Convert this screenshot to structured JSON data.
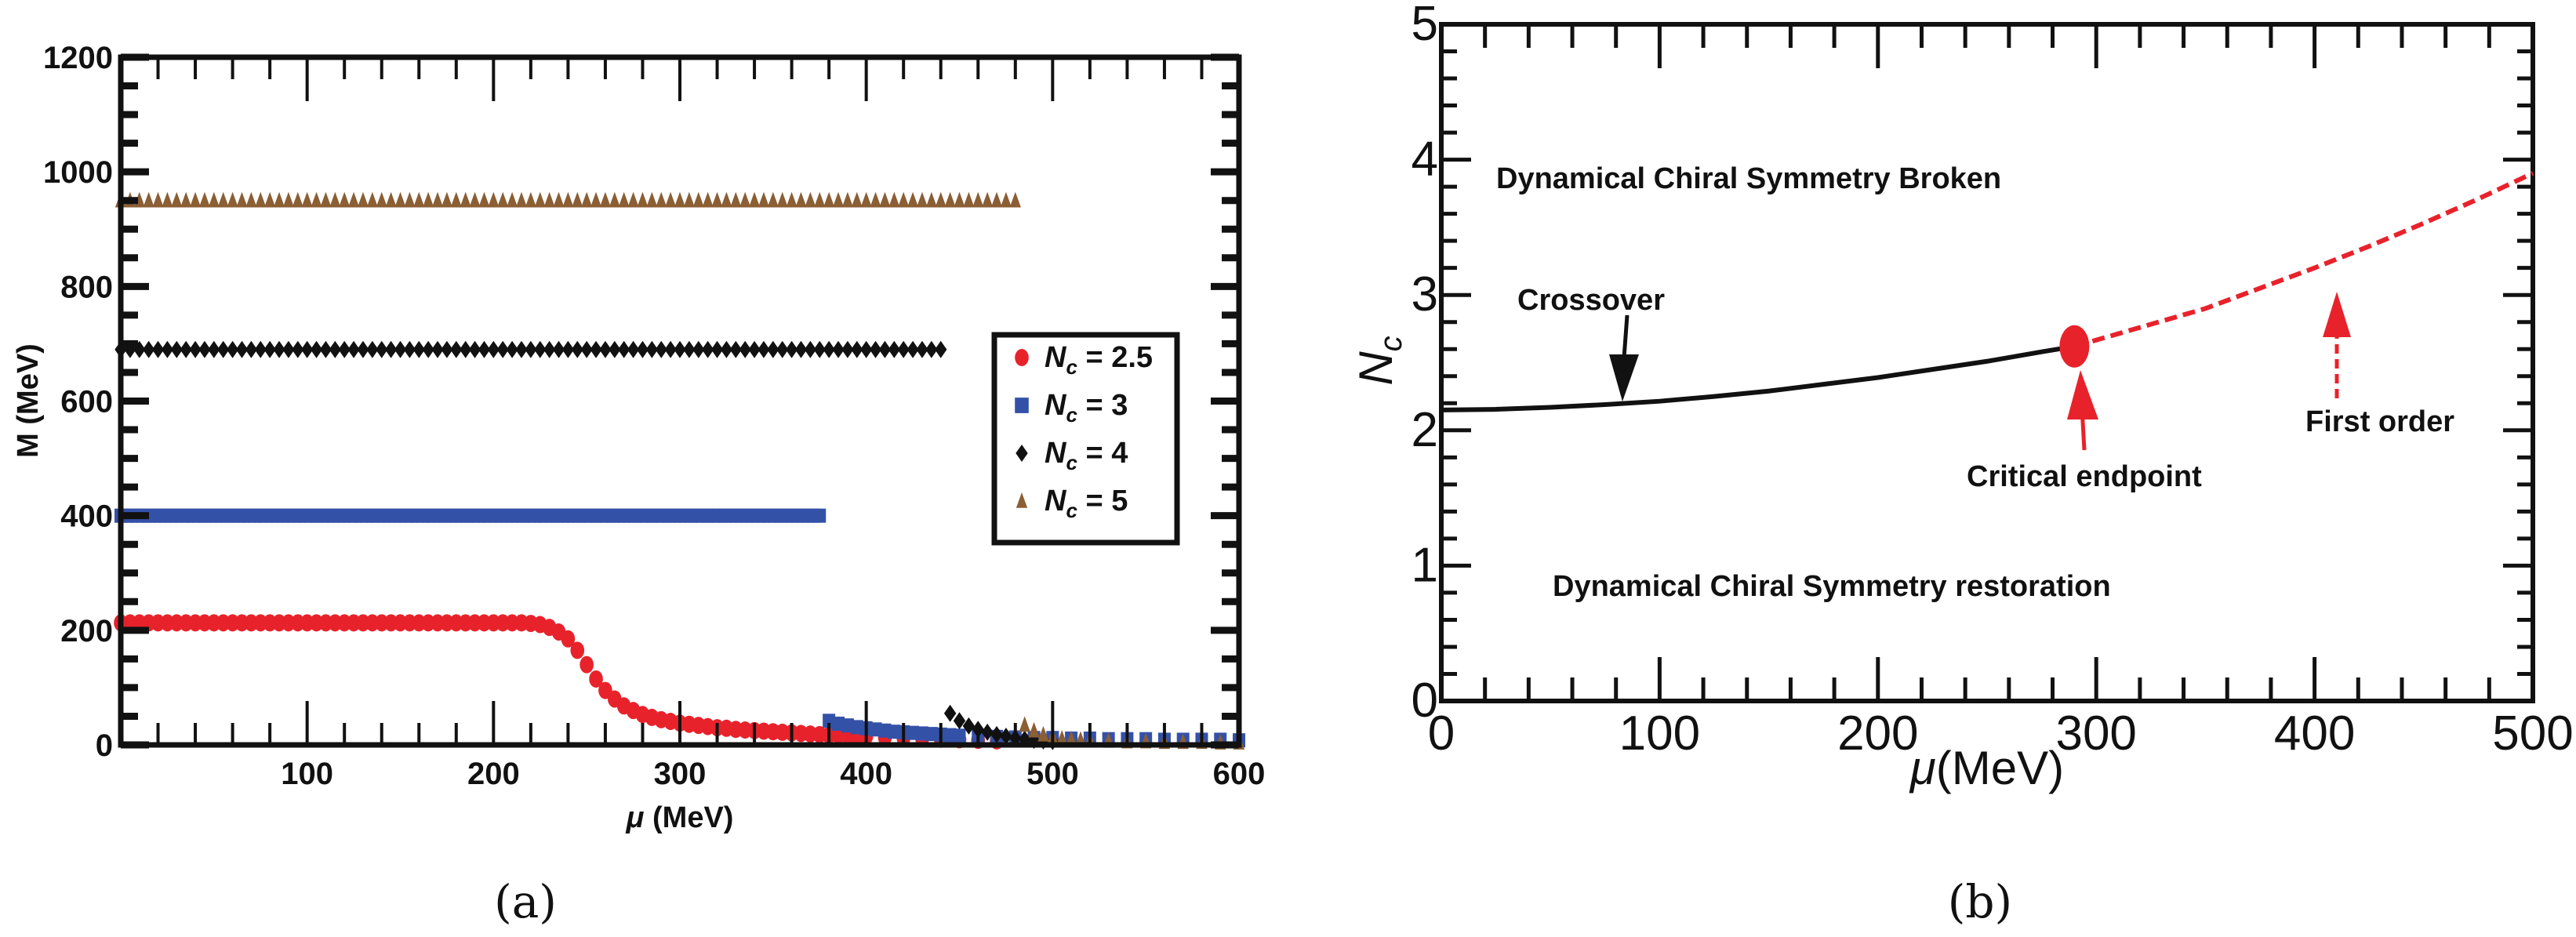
{
  "chart_data": [
    {
      "type": "scatter",
      "caption": "(a)",
      "xlabel_sym": "μ",
      "xlabel_unit": "(MeV)",
      "ylabel": "M (MeV)",
      "xlim": [
        0,
        600
      ],
      "ylim": [
        0,
        1200
      ],
      "xticks": [
        100,
        200,
        300,
        400,
        500,
        600
      ],
      "yticks": [
        0,
        200,
        400,
        600,
        800,
        1000,
        1200
      ],
      "legend_position": "right",
      "series": [
        {
          "name": "Nc = 2.5",
          "legend_sym": "N",
          "legend_sub": "c",
          "legend_val": "= 2.5",
          "marker": "circle",
          "color": "#e8222b",
          "upper_branch": {
            "x_from": 0,
            "x_to": 215,
            "step": 5,
            "M": 213
          },
          "lower_branch": {
            "x": [
              220,
              225,
              230,
              235,
              240,
              245,
              250,
              255,
              260,
              265,
              270,
              275,
              280,
              285,
              290,
              295,
              300,
              305,
              310,
              315,
              320,
              325,
              330,
              335,
              340,
              345,
              350,
              355,
              360,
              365,
              370,
              375,
              380,
              385,
              390,
              395,
              400,
              410,
              420,
              430,
              440,
              450,
              460,
              470
            ],
            "M": [
              212,
              210,
              205,
              197,
              185,
              165,
              140,
              115,
              95,
              80,
              68,
              60,
              53,
              48,
              44,
              41,
              38,
              36,
              34,
              32,
              30,
              29,
              27,
              26,
              25,
              24,
              23,
              22,
              21,
              20,
              19,
              18,
              17,
              17,
              16,
              15,
              15,
              13,
              12,
              11,
              10,
              9,
              8,
              7
            ]
          }
        },
        {
          "name": "Nc = 3",
          "legend_sym": "N",
          "legend_sub": "c",
          "legend_val": "= 3",
          "marker": "square",
          "color": "#3451a8",
          "upper_branch": {
            "x_from": 0,
            "x_to": 377,
            "step": 3,
            "M": 400
          },
          "lower_branch": {
            "x": [
              380,
              385,
              390,
              395,
              400,
              405,
              410,
              415,
              420,
              425,
              430,
              435,
              440,
              445,
              450,
              460,
              470,
              480,
              490,
              500,
              510,
              520,
              530,
              540,
              550,
              560,
              570,
              580,
              590,
              600
            ],
            "M": [
              42,
              37,
              34,
              31,
              29,
              27,
              25,
              23,
              22,
              21,
              20,
              19,
              18,
              17,
              16,
              15,
              14,
              13,
              12,
              12,
              11,
              11,
              10,
              10,
              10,
              9,
              9,
              9,
              9,
              8
            ]
          }
        },
        {
          "name": "Nc = 4",
          "legend_sym": "N",
          "legend_sub": "c",
          "legend_val": "= 4",
          "marker": "diamond",
          "color": "#111111",
          "upper_branch": {
            "x_from": 0,
            "x_to": 440,
            "step": 5,
            "M": 690
          },
          "lower_branch": {
            "x": [
              445,
              450,
              455,
              460,
              465,
              470,
              475,
              480,
              485,
              490,
              495,
              500
            ],
            "M": [
              55,
              42,
              33,
              27,
              22,
              18,
              15,
              12,
              10,
              8,
              7,
              6
            ]
          }
        },
        {
          "name": "Nc = 5",
          "legend_sym": "N",
          "legend_sub": "c",
          "legend_val": "= 5",
          "marker": "triangle",
          "color": "#8b5e34",
          "upper_branch": {
            "x_from": 0,
            "x_to": 480,
            "step": 5,
            "M": 950
          },
          "lower_branch": {
            "x": [
              485,
              490,
              495,
              500,
              505,
              510,
              515,
              520,
              530,
              540,
              550,
              560,
              570,
              580,
              590,
              600
            ],
            "M": [
              35,
              25,
              18,
              14,
              11,
              10,
              9,
              8,
              7,
              6,
              6,
              5,
              5,
              5,
              4,
              4
            ]
          }
        }
      ]
    },
    {
      "type": "line",
      "caption": "(b)",
      "xlabel_sym": "μ",
      "xlabel_unit": "(MeV)",
      "ylabel_sym": "N",
      "ylabel_sub": "c",
      "xlim": [
        0,
        500
      ],
      "ylim": [
        0,
        5
      ],
      "xticks": [
        0,
        100,
        200,
        300,
        400,
        500
      ],
      "yticks": [
        0,
        1,
        2,
        3,
        4,
        5
      ],
      "series": [
        {
          "name": "Crossover",
          "style": "solid",
          "color": "#111111",
          "x": [
            0,
            25,
            50,
            75,
            100,
            125,
            150,
            175,
            200,
            225,
            250,
            275,
            290
          ],
          "y": [
            2.15,
            2.155,
            2.17,
            2.19,
            2.215,
            2.25,
            2.29,
            2.34,
            2.39,
            2.45,
            2.51,
            2.58,
            2.62
          ]
        },
        {
          "name": "First order",
          "style": "dashed",
          "color": "#e8222b",
          "x": [
            290,
            320,
            350,
            375,
            400,
            425,
            450,
            475,
            500
          ],
          "y": [
            2.62,
            2.76,
            2.9,
            3.05,
            3.2,
            3.36,
            3.53,
            3.71,
            3.9
          ]
        }
      ],
      "critical_endpoint": {
        "x": 290,
        "y": 2.62,
        "color": "#e8222b"
      },
      "annotations": {
        "broken": "Dynamical Chiral Symmetry Broken",
        "restoration": "Dynamical Chiral Symmetry restoration",
        "crossover": "Crossover",
        "critical": "Critical endpoint",
        "first_order": "First order"
      }
    }
  ]
}
